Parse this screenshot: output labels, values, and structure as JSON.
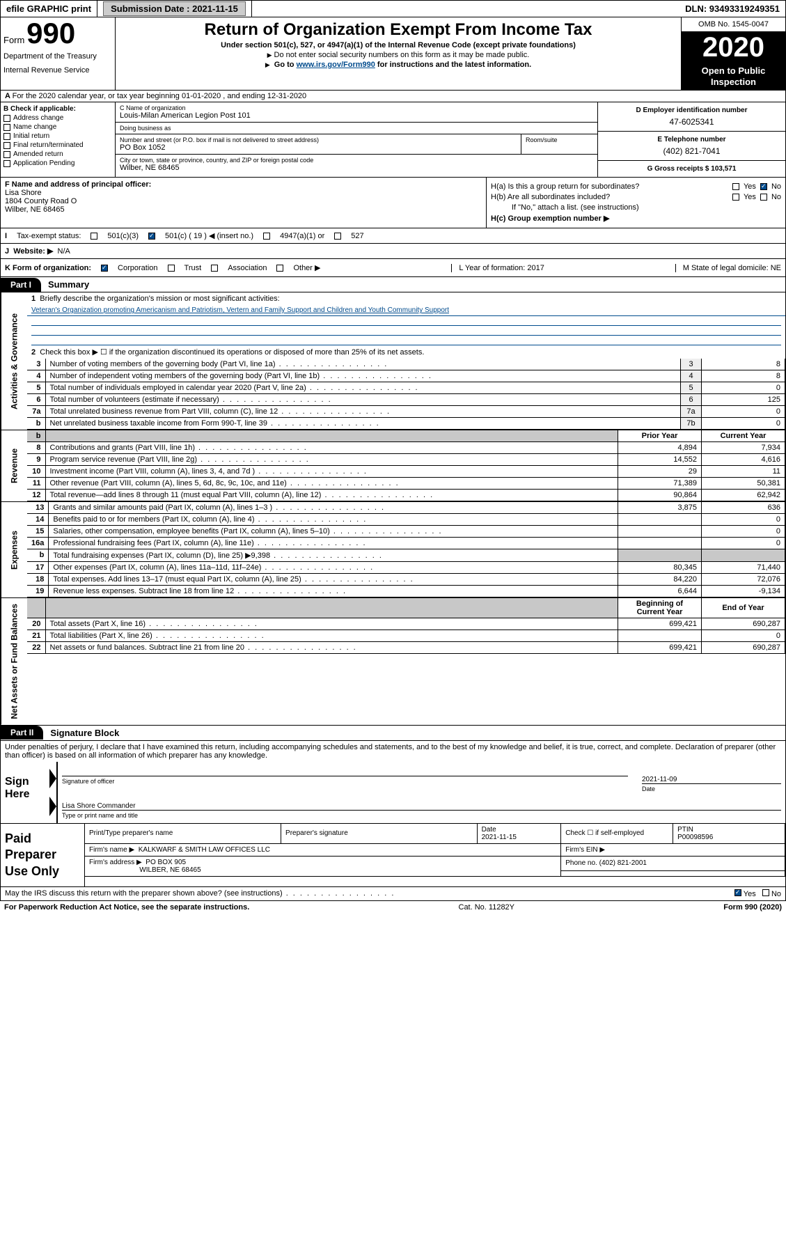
{
  "topbar": {
    "efile": "efile GRAPHIC print",
    "sub_label": "Submission Date : 2021-11-15",
    "dln": "DLN: 93493319249351"
  },
  "header": {
    "form_word": "Form",
    "form_no": "990",
    "dept": "Department of the Treasury",
    "irs": "Internal Revenue Service",
    "title": "Return of Organization Exempt From Income Tax",
    "sub1": "Under section 501(c), 527, or 4947(a)(1) of the Internal Revenue Code (except private foundations)",
    "sub2": "Do not enter social security numbers on this form as it may be made public.",
    "sub3_pre": "Go to ",
    "sub3_link": "www.irs.gov/Form990",
    "sub3_post": " for instructions and the latest information.",
    "omb": "OMB No. 1545-0047",
    "year": "2020",
    "open": "Open to Public Inspection"
  },
  "rowA": "For the 2020 calendar year, or tax year beginning 01-01-2020   , and ending 12-31-2020",
  "secB": {
    "b_label": "B Check if applicable:",
    "opts": [
      "Address change",
      "Name change",
      "Initial return",
      "Final return/terminated",
      "Amended return",
      "Application Pending"
    ],
    "c_name_lbl": "C Name of organization",
    "c_name": "Louis-Milan American Legion Post 101",
    "dba_lbl": "Doing business as",
    "dba": "",
    "addr_lbl": "Number and street (or P.O. box if mail is not delivered to street address)",
    "addr": "PO Box 1052",
    "room_lbl": "Room/suite",
    "city_lbl": "City or town, state or province, country, and ZIP or foreign postal code",
    "city": "Wilber, NE  68465",
    "d_lbl": "D Employer identification number",
    "d_val": "47-6025341",
    "e_lbl": "E Telephone number",
    "e_val": "(402) 821-7041",
    "g_lbl": "G Gross receipts $ 103,571"
  },
  "fh": {
    "f_lbl": "F  Name and address of principal officer:",
    "f_name": "Lisa Shore",
    "f_addr1": "1804 County Road O",
    "f_addr2": "Wilber, NE  68465",
    "ha": "H(a)  Is this a group return for subordinates?",
    "hb": "H(b)  Are all subordinates included?",
    "hb_note": "If \"No,\" attach a list. (see instructions)",
    "hc": "H(c)  Group exemption number ▶",
    "yes": "Yes",
    "no": "No"
  },
  "rowI": {
    "lbl": "Tax-exempt status:",
    "o1": "501(c)(3)",
    "o2": "501(c) ( 19 ) ◀ (insert no.)",
    "o3": "4947(a)(1) or",
    "o4": "527",
    "i_letter": "I"
  },
  "rowJ": {
    "lbl": "Website: ▶",
    "val": "N/A",
    "j_letter": "J"
  },
  "rowK": {
    "lbl": "K Form of organization:",
    "o1": "Corporation",
    "o2": "Trust",
    "o3": "Association",
    "o4": "Other ▶",
    "l": "L Year of formation: 2017",
    "m": "M State of legal domicile: NE"
  },
  "part1": {
    "hdr": "Part I",
    "title": "Summary",
    "side1": "Activities & Governance",
    "side2": "Revenue",
    "side3": "Expenses",
    "side4": "Net Assets or Fund Balances",
    "l1": "Briefly describe the organization's mission or most significant activities:",
    "l1v": "Veteran's Organization promoting Americanism and Patriotism, Vertern and Family Support and Children and Youth Community Support",
    "l2": "Check this box ▶ ☐  if the organization discontinued its operations or disposed of more than 25% of its net assets.",
    "rows": [
      {
        "n": "3",
        "d": "Number of voting members of the governing body (Part VI, line 1a)",
        "nn": "3",
        "v": "8"
      },
      {
        "n": "4",
        "d": "Number of independent voting members of the governing body (Part VI, line 1b)",
        "nn": "4",
        "v": "8"
      },
      {
        "n": "5",
        "d": "Total number of individuals employed in calendar year 2020 (Part V, line 2a)",
        "nn": "5",
        "v": "0"
      },
      {
        "n": "6",
        "d": "Total number of volunteers (estimate if necessary)",
        "nn": "6",
        "v": "125"
      },
      {
        "n": "7a",
        "d": "Total unrelated business revenue from Part VIII, column (C), line 12",
        "nn": "7a",
        "v": "0"
      },
      {
        "n": "b",
        "d": "Net unrelated business taxable income from Form 990-T, line 39",
        "nn": "7b",
        "v": "0"
      }
    ],
    "pyh": "Prior Year",
    "cyh": "Current Year",
    "rev": [
      {
        "n": "8",
        "d": "Contributions and grants (Part VIII, line 1h)",
        "p": "4,894",
        "c": "7,934"
      },
      {
        "n": "9",
        "d": "Program service revenue (Part VIII, line 2g)",
        "p": "14,552",
        "c": "4,616"
      },
      {
        "n": "10",
        "d": "Investment income (Part VIII, column (A), lines 3, 4, and 7d )",
        "p": "29",
        "c": "11"
      },
      {
        "n": "11",
        "d": "Other revenue (Part VIII, column (A), lines 5, 6d, 8c, 9c, 10c, and 11e)",
        "p": "71,389",
        "c": "50,381"
      },
      {
        "n": "12",
        "d": "Total revenue—add lines 8 through 11 (must equal Part VIII, column (A), line 12)",
        "p": "90,864",
        "c": "62,942"
      }
    ],
    "exp": [
      {
        "n": "13",
        "d": "Grants and similar amounts paid (Part IX, column (A), lines 1–3 )",
        "p": "3,875",
        "c": "636"
      },
      {
        "n": "14",
        "d": "Benefits paid to or for members (Part IX, column (A), line 4)",
        "p": "",
        "c": "0"
      },
      {
        "n": "15",
        "d": "Salaries, other compensation, employee benefits (Part IX, column (A), lines 5–10)",
        "p": "",
        "c": "0"
      },
      {
        "n": "16a",
        "d": "Professional fundraising fees (Part IX, column (A), line 11e)",
        "p": "",
        "c": "0"
      },
      {
        "n": "b",
        "d": "Total fundraising expenses (Part IX, column (D), line 25) ▶9,398",
        "p": "GRAY",
        "c": "GRAY"
      },
      {
        "n": "17",
        "d": "Other expenses (Part IX, column (A), lines 11a–11d, 11f–24e)",
        "p": "80,345",
        "c": "71,440"
      },
      {
        "n": "18",
        "d": "Total expenses. Add lines 13–17 (must equal Part IX, column (A), line 25)",
        "p": "84,220",
        "c": "72,076"
      },
      {
        "n": "19",
        "d": "Revenue less expenses. Subtract line 18 from line 12",
        "p": "6,644",
        "c": "-9,134"
      }
    ],
    "boc": "Beginning of Current Year",
    "eoy": "End of Year",
    "net": [
      {
        "n": "20",
        "d": "Total assets (Part X, line 16)",
        "p": "699,421",
        "c": "690,287"
      },
      {
        "n": "21",
        "d": "Total liabilities (Part X, line 26)",
        "p": "",
        "c": "0"
      },
      {
        "n": "22",
        "d": "Net assets or fund balances. Subtract line 21 from line 20",
        "p": "699,421",
        "c": "690,287"
      }
    ]
  },
  "part2": {
    "hdr": "Part II",
    "title": "Signature Block",
    "perjury": "Under penalties of perjury, I declare that I have examined this return, including accompanying schedules and statements, and to the best of my knowledge and belief, it is true, correct, and complete. Declaration of preparer (other than officer) is based on all information of which preparer has any knowledge.",
    "sign_here": "Sign Here",
    "sig_off": "Signature of officer",
    "sig_date": "2021-11-09",
    "date_lbl": "Date",
    "officer": "Lisa Shore Commander",
    "officer_lbl": "Type or print name and title",
    "paid": "Paid Preparer Use Only",
    "pt_name_lbl": "Print/Type preparer's name",
    "pt_sig_lbl": "Preparer's signature",
    "pt_date_lbl": "Date",
    "pt_date": "2021-11-15",
    "pt_self": "Check ☐ if self-employed",
    "ptin_lbl": "PTIN",
    "ptin": "P00098596",
    "firm_name_lbl": "Firm's name    ▶",
    "firm_name": "KALKWARF & SMITH LAW OFFICES LLC",
    "firm_ein_lbl": "Firm's EIN ▶",
    "firm_addr_lbl": "Firm's address ▶",
    "firm_addr1": "PO BOX 905",
    "firm_addr2": "WILBER, NE  68465",
    "phone_lbl": "Phone no.",
    "phone": "(402) 821-2001",
    "discuss": "May the IRS discuss this return with the preparer shown above? (see instructions)"
  },
  "footer": {
    "pra": "For Paperwork Reduction Act Notice, see the separate instructions.",
    "cat": "Cat. No. 11282Y",
    "form": "Form 990 (2020)"
  }
}
